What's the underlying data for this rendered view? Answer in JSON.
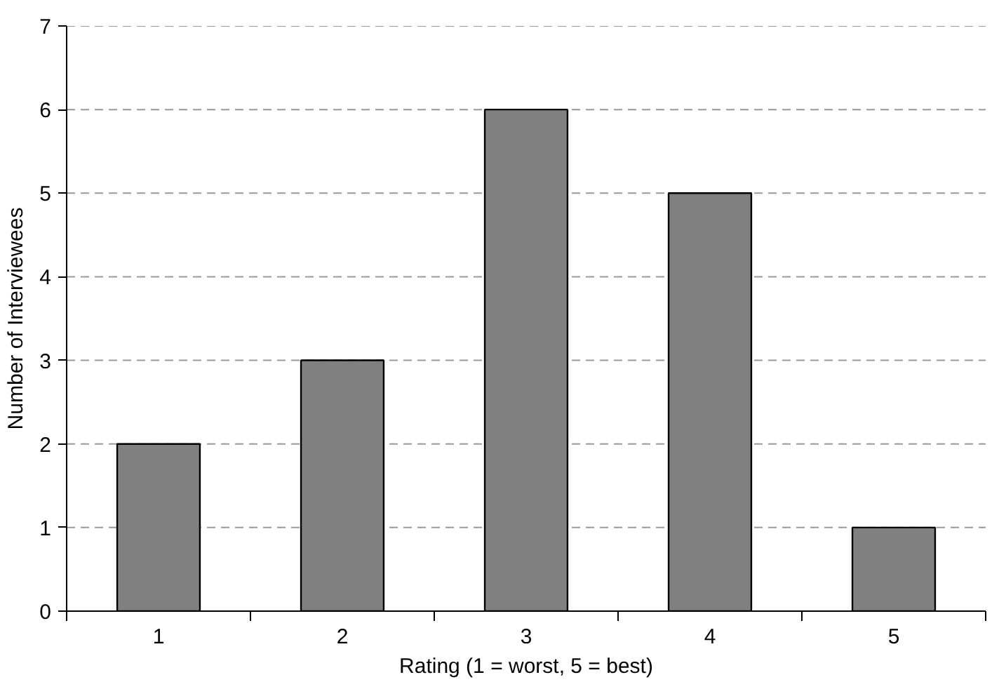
{
  "chart_data": {
    "type": "bar",
    "xlabel": "Rating (1 = worst, 5 = best)",
    "ylabel": "Number of Interviewees",
    "categories": [
      "1",
      "2",
      "3",
      "4",
      "5"
    ],
    "values": [
      2,
      3,
      6,
      5,
      1
    ],
    "color": "#808080",
    "ylim": [
      0,
      7
    ],
    "yticks": [
      0,
      1,
      2,
      3,
      4,
      5,
      6,
      7
    ],
    "grid": "y"
  }
}
